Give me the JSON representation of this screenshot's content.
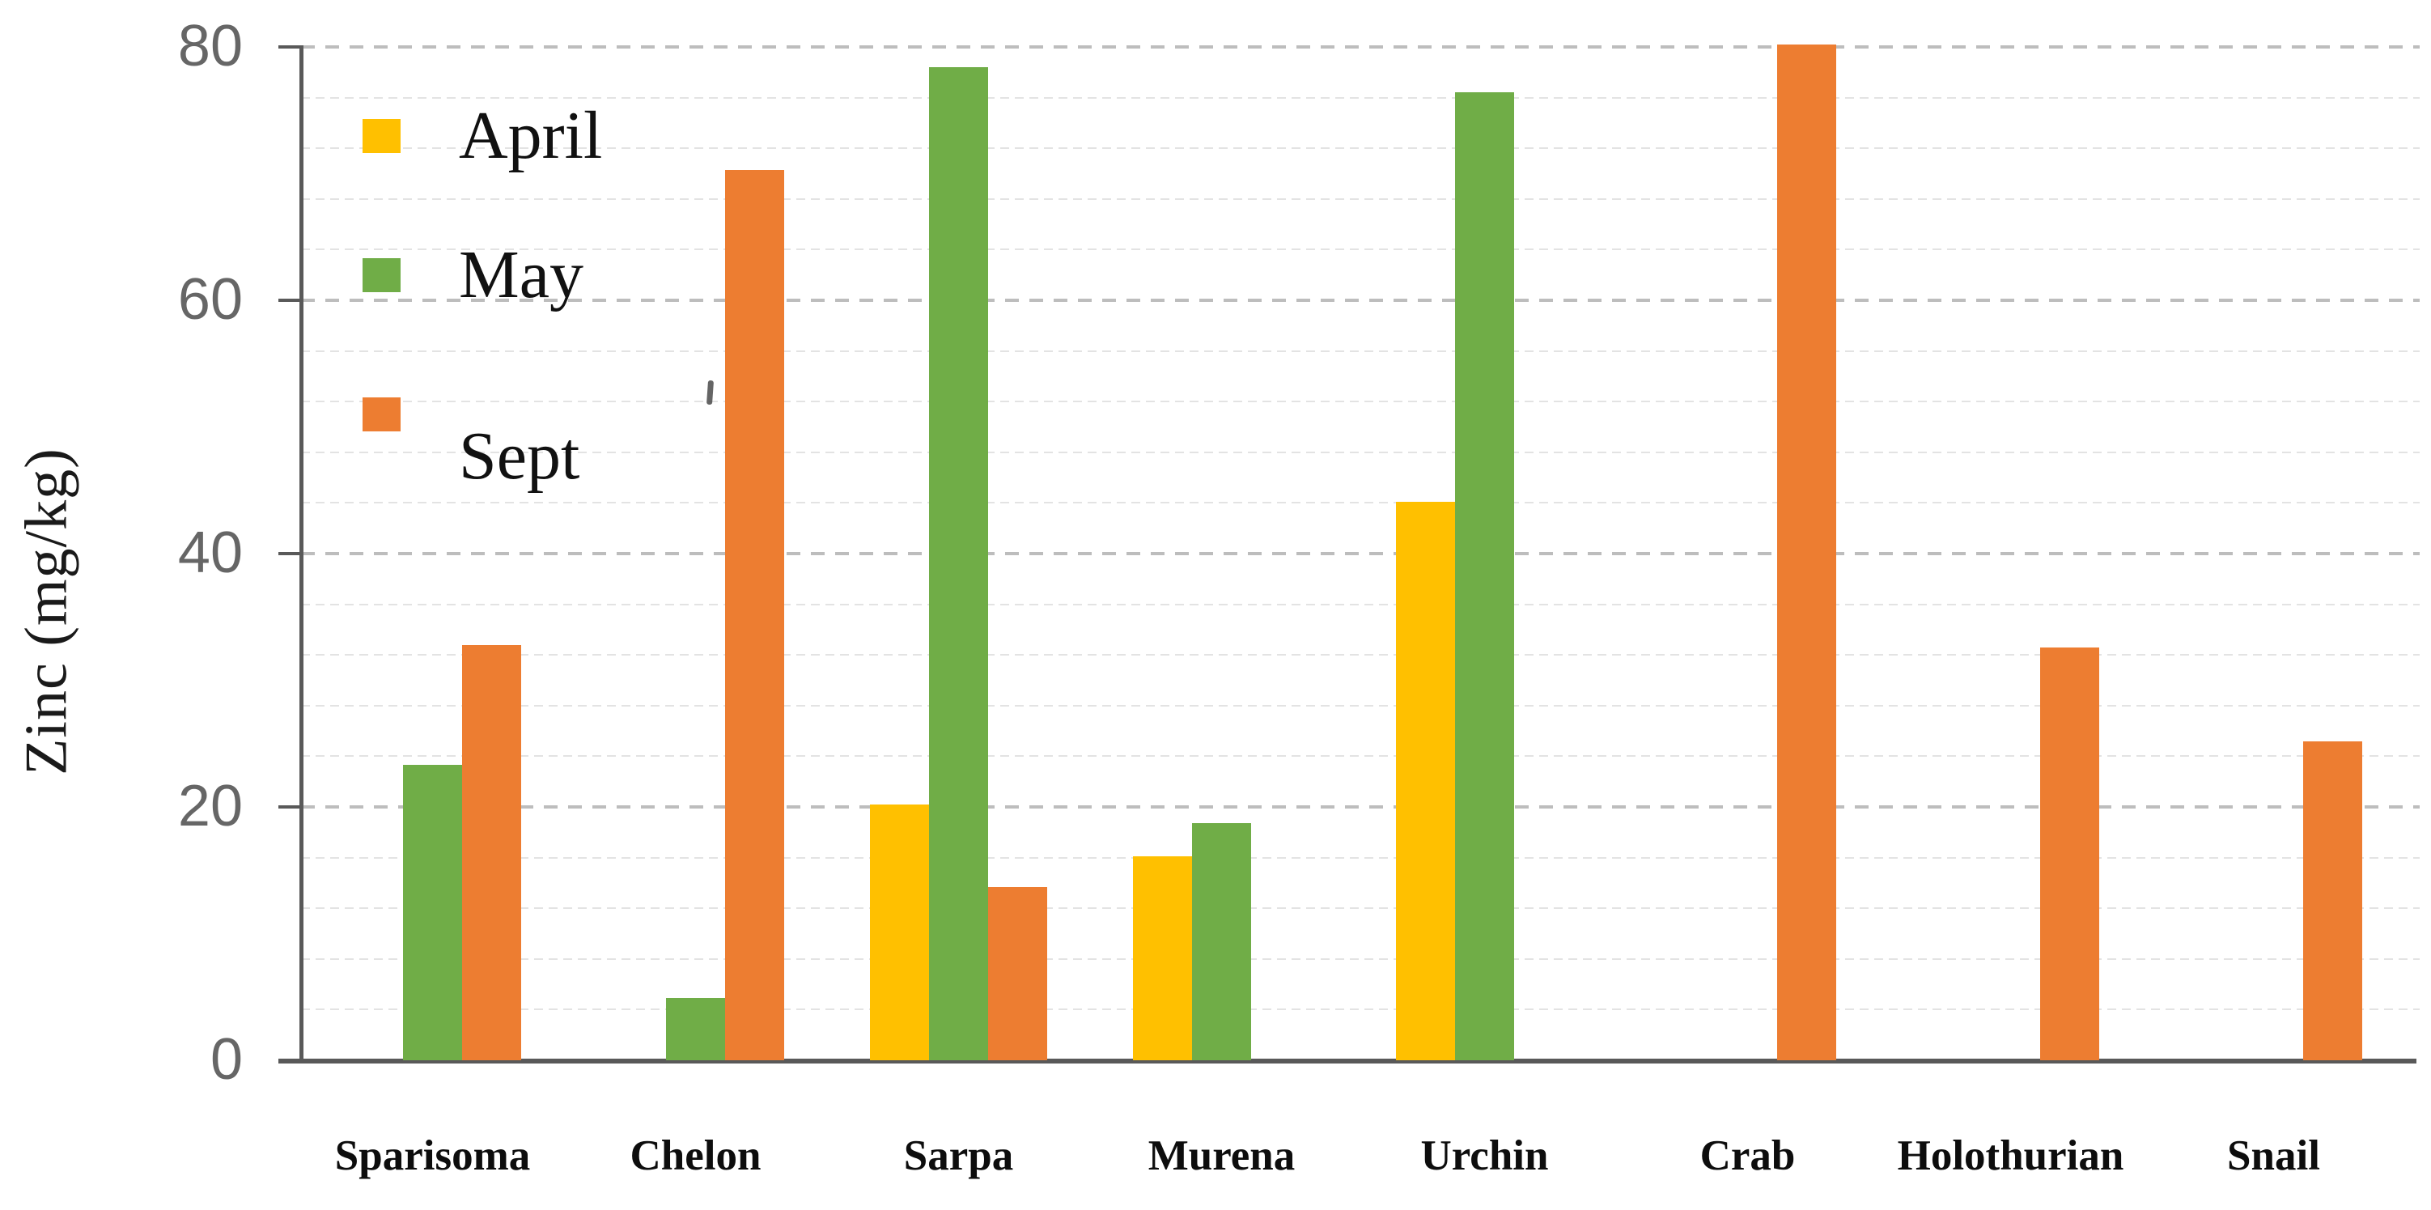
{
  "chart_data": {
    "type": "bar",
    "title": "",
    "xlabel": "",
    "ylabel": "Zinc (mg/kg)",
    "categories": [
      "Sparisoma",
      "Chelon",
      "Sarpa",
      "Murena",
      "Urchin",
      "Crab",
      "Holothurian",
      "Snail"
    ],
    "series": [
      {
        "name": "April",
        "color": "#FFC000",
        "values": [
          null,
          null,
          20.2,
          16.1,
          44.1,
          null,
          null,
          null
        ]
      },
      {
        "name": "May",
        "color": "#70AD47",
        "values": [
          23.3,
          4.9,
          78.4,
          18.7,
          76.4,
          null,
          null,
          null
        ]
      },
      {
        "name": "Sept",
        "color": "#ED7D31",
        "values": [
          32.8,
          70.3,
          13.7,
          null,
          null,
          80.2,
          32.6,
          25.2
        ]
      }
    ],
    "ylim": [
      0,
      80
    ],
    "yticks": [
      0,
      20,
      40,
      60,
      80
    ],
    "minor_unit": 4,
    "grid": "major dashed gray at multiples of 20, faint minor lines every 4",
    "legend_position": "inside top-left, vertical"
  },
  "style_colors": {
    "axis": "#595959",
    "tick_label": "#666666",
    "major_grid": "#bdbdbd",
    "minor_grid": "#e3e3e3",
    "category_label": "#0d0d0d",
    "legend_text": "#111111",
    "background": "#ffffff"
  }
}
